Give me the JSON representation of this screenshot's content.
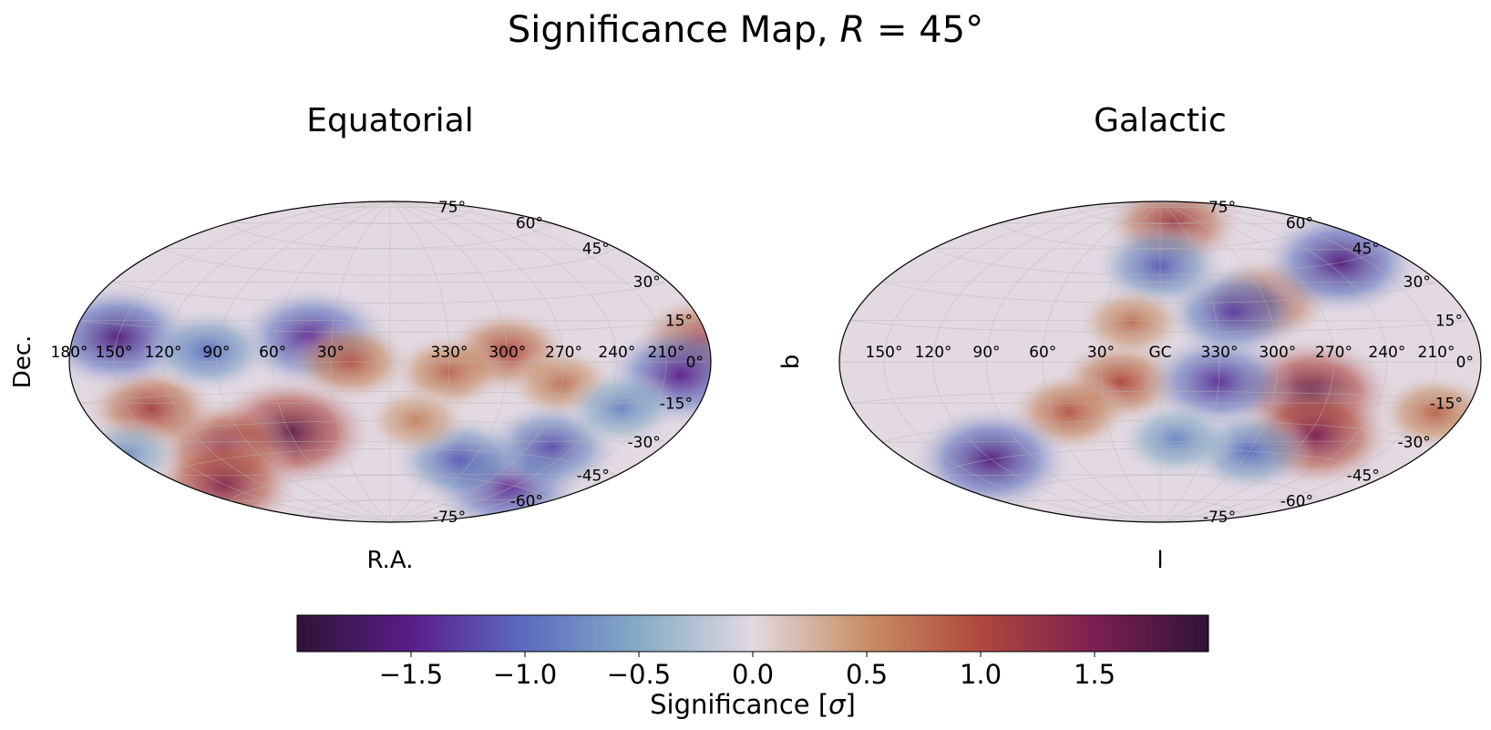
{
  "figure": {
    "title_text": "Significance Map, ",
    "title_math_var": "R",
    "title_math_rest": " = 45°"
  },
  "chart_data": [
    {
      "type": "heatmap",
      "projection": "hammer-aitoff",
      "title": "Equatorial",
      "xlabel": "R.A.",
      "ylabel": "Dec.",
      "lon_tick_labels": [
        "330°",
        "300°",
        "270°",
        "240°",
        "210°",
        "180°",
        "150°",
        "120°",
        "90°",
        "60°",
        "30°"
      ],
      "lon_tick_values": [
        330,
        300,
        270,
        240,
        210,
        180,
        150,
        120,
        90,
        60,
        30
      ],
      "lat_tick_labels": [
        "75°",
        "60°",
        "45°",
        "30°",
        "15°",
        "0°",
        "-15°",
        "-30°",
        "-45°",
        "-60°",
        "-75°"
      ],
      "lat_tick_values": [
        75,
        60,
        45,
        30,
        15,
        0,
        -15,
        -30,
        -45,
        -60,
        -75
      ],
      "grid": true,
      "coverage": "data present for Dec. below about +20°; above is masked (0)",
      "hotspots": [
        {
          "lon": 60,
          "lat": -35,
          "sigma": 1.7
        },
        {
          "lon": 110,
          "lat": -40,
          "sigma": 1.3
        },
        {
          "lon": 135,
          "lat": -20,
          "sigma": 1.1
        },
        {
          "lon": 150,
          "lat": -55,
          "sigma": 1.4
        },
        {
          "lon": 185,
          "lat": 8,
          "sigma": 1.1
        },
        {
          "lon": 300,
          "lat": 5,
          "sigma": 1.0
        },
        {
          "lon": 330,
          "lat": -5,
          "sigma": 0.8
        },
        {
          "lon": 270,
          "lat": -10,
          "sigma": 0.7
        },
        {
          "lon": 200,
          "lat": -5,
          "sigma": -1.5
        },
        {
          "lon": 150,
          "lat": 10,
          "sigma": -1.6
        },
        {
          "lon": 40,
          "lat": 12,
          "sigma": -1.5
        },
        {
          "lon": 250,
          "lat": -60,
          "sigma": -1.5
        },
        {
          "lon": 255,
          "lat": -40,
          "sigma": -1.2
        },
        {
          "lon": 310,
          "lat": -50,
          "sigma": -1.1
        },
        {
          "lon": 230,
          "lat": -20,
          "sigma": -0.8
        },
        {
          "lon": 95,
          "lat": 5,
          "sigma": -1.0
        },
        {
          "lon": 20,
          "lat": 0,
          "sigma": 0.9
        },
        {
          "lon": 345,
          "lat": -30,
          "sigma": 0.6
        },
        {
          "lon": 180,
          "lat": -35,
          "sigma": -0.7
        }
      ]
    },
    {
      "type": "heatmap",
      "projection": "hammer-aitoff",
      "title": "Galactic",
      "xlabel": "l",
      "ylabel": "b",
      "lon_tick_labels": [
        "150°",
        "120°",
        "90°",
        "60°",
        "30°",
        "GC",
        "330°",
        "300°",
        "270°",
        "240°",
        "210°"
      ],
      "lon_tick_values": [
        150,
        120,
        90,
        60,
        30,
        0,
        330,
        300,
        270,
        240,
        210
      ],
      "lat_tick_labels": [
        "75°",
        "60°",
        "45°",
        "30°",
        "15°",
        "0°",
        "-15°",
        "-30°",
        "-45°",
        "-60°",
        "-75°"
      ],
      "lat_tick_values": [
        75,
        60,
        45,
        30,
        15,
        0,
        -15,
        -30,
        -45,
        -60,
        -75
      ],
      "grid": true,
      "coverage": "equatorial footprint (Dec. below about +20°) mapped to Galactic coordinates; left part masked (0)",
      "hotspots": [
        {
          "lon": 280,
          "lat": -15,
          "sigma": 1.7
        },
        {
          "lon": 265,
          "lat": -35,
          "sigma": 1.5
        },
        {
          "lon": 300,
          "lat": 30,
          "sigma": 1.1
        },
        {
          "lon": 20,
          "lat": -10,
          "sigma": 1.0
        },
        {
          "lon": 50,
          "lat": -25,
          "sigma": 0.9
        },
        {
          "lon": 340,
          "lat": 75,
          "sigma": 1.2
        },
        {
          "lon": 330,
          "lat": -10,
          "sigma": -1.4
        },
        {
          "lon": 320,
          "lat": 25,
          "sigma": -1.3
        },
        {
          "lon": 230,
          "lat": 45,
          "sigma": -1.6
        },
        {
          "lon": 0,
          "lat": 50,
          "sigma": -1.1
        },
        {
          "lon": 120,
          "lat": -45,
          "sigma": -1.6
        },
        {
          "lon": 300,
          "lat": -45,
          "sigma": -1.0
        },
        {
          "lon": 350,
          "lat": -40,
          "sigma": -0.8
        },
        {
          "lon": 15,
          "lat": 20,
          "sigma": 0.7
        },
        {
          "lon": 200,
          "lat": -20,
          "sigma": 0.8
        }
      ]
    }
  ],
  "colorbar": {
    "colormap": "twilight_shifted",
    "label_text": "Significance [",
    "label_symbol": "σ",
    "label_close": "]",
    "range": [
      -2.0,
      2.0
    ],
    "ticks": [
      -1.5,
      -1.0,
      -0.5,
      0.0,
      0.5,
      1.0,
      1.5
    ],
    "tick_labels": [
      "−1.5",
      "−1.0",
      "−0.5",
      "0.0",
      "0.5",
      "1.0",
      "1.5"
    ],
    "stops": [
      "#2f1436",
      "#5a1d8a",
      "#5b6cc0",
      "#86abc6",
      "#e2d9e2",
      "#c78e64",
      "#b0483d",
      "#7c1f52",
      "#2f1436"
    ]
  }
}
